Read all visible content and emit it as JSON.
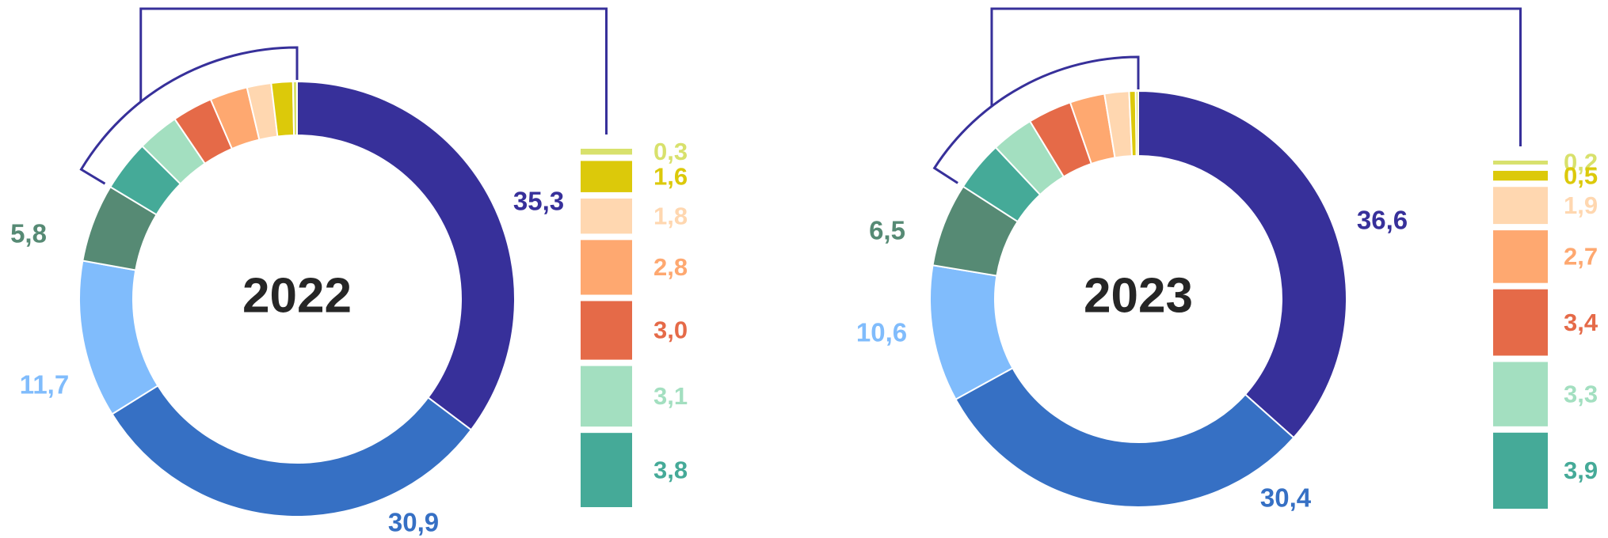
{
  "chart_data": [
    {
      "type": "pie",
      "title": "2022",
      "values": [
        35.3,
        30.9,
        11.7,
        5.8,
        3.8,
        3.1,
        3.0,
        2.8,
        1.8,
        1.6,
        0.3
      ],
      "value_labels": [
        "35,3",
        "30,9",
        "11,7",
        "5,8",
        "3,8",
        "3,1",
        "3,0",
        "2,8",
        "1,8",
        "1,6",
        "0,3"
      ],
      "colors": [
        "#37309a",
        "#3670c4",
        "#80bcfc",
        "#568a74",
        "#45aa98",
        "#a3dfc0",
        "#e56a48",
        "#fea870",
        "#ffd7b0",
        "#dcc90a",
        "#d8e16c"
      ]
    },
    {
      "type": "pie",
      "title": "2023",
      "values": [
        36.6,
        30.4,
        10.6,
        6.5,
        3.9,
        3.3,
        3.4,
        2.7,
        1.9,
        0.5,
        0.2
      ],
      "value_labels": [
        "36,6",
        "30,4",
        "10,6",
        "6,5",
        "3,9",
        "3,3",
        "3,4",
        "2,7",
        "1,9",
        "0,5",
        "0,2"
      ],
      "colors": [
        "#37309a",
        "#3670c4",
        "#80bcfc",
        "#568a74",
        "#45aa98",
        "#a3dfc0",
        "#e56a48",
        "#fea870",
        "#ffd7b0",
        "#dcc90a",
        "#d8e16c"
      ]
    }
  ]
}
